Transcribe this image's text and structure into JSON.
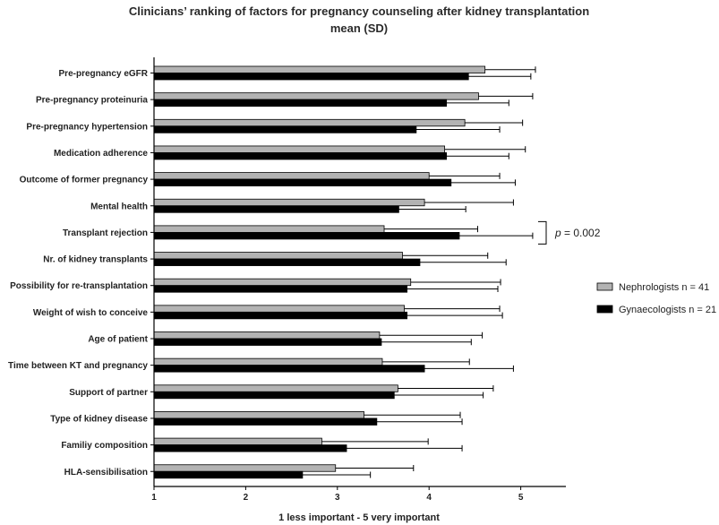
{
  "chart_data": {
    "type": "bar",
    "orientation": "horizontal",
    "title": "Clinicians’ ranking of factors for pregnancy counseling after kidney transplantation",
    "subtitle": "mean (SD)",
    "xlabel": "1 less important - 5 very important",
    "ylabel": "",
    "xlim": [
      1,
      5.5
    ],
    "xticks": [
      "1",
      "2",
      "3",
      "4",
      "5"
    ],
    "grid": false,
    "legend_position": "right",
    "error_bars": "SD",
    "categories": [
      "Pre-pregnancy eGFR",
      "Pre-pregnancy proteinuria",
      "Pre-pregnancy hypertension",
      "Medication adherence",
      "Outcome of former pregnancy",
      "Mental health",
      "Transplant rejection",
      "Nr. of kidney transplants",
      "Possibility for re-transplantation",
      "Weight of wish to conceive",
      "Age of patient",
      "Time between KT and pregnancy",
      "Support of partner",
      "Type of kidney disease",
      "Familiy composition",
      "HLA-sensibilisation"
    ],
    "series": [
      {
        "name": "Nephrologists n = 41",
        "color": "#b3b3b3",
        "values": [
          4.61,
          4.54,
          4.39,
          4.17,
          4.0,
          3.95,
          3.51,
          3.71,
          3.8,
          3.73,
          3.46,
          3.49,
          3.66,
          3.29,
          2.83,
          2.98
        ],
        "sd": [
          0.55,
          0.59,
          0.63,
          0.88,
          0.77,
          0.97,
          1.02,
          0.93,
          0.98,
          1.04,
          1.12,
          0.95,
          1.04,
          1.05,
          1.16,
          0.85
        ]
      },
      {
        "name": "Gynaecologists n = 21",
        "color": "#000000",
        "values": [
          4.43,
          4.19,
          3.86,
          4.19,
          4.24,
          3.67,
          4.33,
          3.9,
          3.76,
          3.76,
          3.48,
          3.95,
          3.62,
          3.43,
          3.1,
          2.62
        ],
        "sd": [
          0.68,
          0.68,
          0.91,
          0.68,
          0.7,
          0.73,
          0.8,
          0.94,
          0.99,
          1.04,
          0.98,
          0.97,
          0.97,
          0.93,
          1.26,
          0.74
        ]
      }
    ],
    "annotations": [
      {
        "category": "Transplant rejection",
        "text_italic": "p",
        "text": " = 0.002"
      }
    ]
  }
}
